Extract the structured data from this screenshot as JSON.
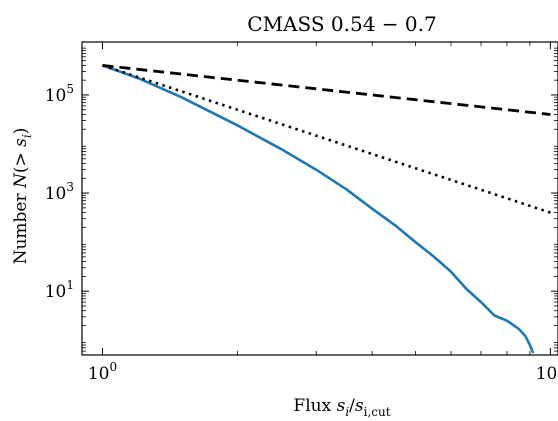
{
  "chart_data": {
    "type": "line",
    "title": "CMASS 0.54 − 0.7",
    "xlabel": {
      "prefix": "Flux ",
      "math": "s",
      "sub": "i",
      "sep": "/",
      "math2": "s",
      "sub2": "i,cut"
    },
    "ylabel": {
      "prefix": "Number ",
      "math": "N",
      "rest": "(> ",
      "math2": "s",
      "sub": "i",
      "close": ")"
    },
    "x_scale": "log",
    "y_scale": "log",
    "xlim": [
      0.9,
      10.4
    ],
    "ylim": [
      0.5,
      1200000
    ],
    "grid": false,
    "x_ticks": [
      {
        "value": 1,
        "base": "10",
        "exp": "0"
      },
      {
        "value": 10,
        "base": "10",
        "exp": "1"
      }
    ],
    "y_ticks": [
      {
        "value": 10,
        "base": "10",
        "exp": "1"
      },
      {
        "value": 1000,
        "base": "10",
        "exp": "3"
      },
      {
        "value": 100000,
        "base": "10",
        "exp": "5"
      }
    ],
    "series": [
      {
        "style": "solid",
        "color": "#1f77b4",
        "x": [
          1.0,
          1.2,
          1.5,
          2.0,
          2.5,
          3.0,
          3.5,
          4.0,
          4.5,
          5.0,
          5.5,
          6.0,
          6.5,
          7.0,
          7.5,
          8.0,
          8.5,
          8.8,
          9.0,
          9.15
        ],
        "y": [
          400000,
          220000,
          90000,
          24000,
          8000,
          3000,
          1200,
          480,
          220,
          100,
          50,
          25,
          11,
          6,
          3.2,
          2.5,
          1.7,
          1.2,
          0.8,
          0.55
        ]
      },
      {
        "style": "dashed",
        "color": "#000000",
        "x": [
          1.0,
          10.0
        ],
        "y": [
          400000,
          40000
        ]
      },
      {
        "style": "dotted",
        "color": "#000000",
        "x": [
          1.0,
          10.0
        ],
        "y": [
          400000,
          400
        ]
      }
    ]
  }
}
